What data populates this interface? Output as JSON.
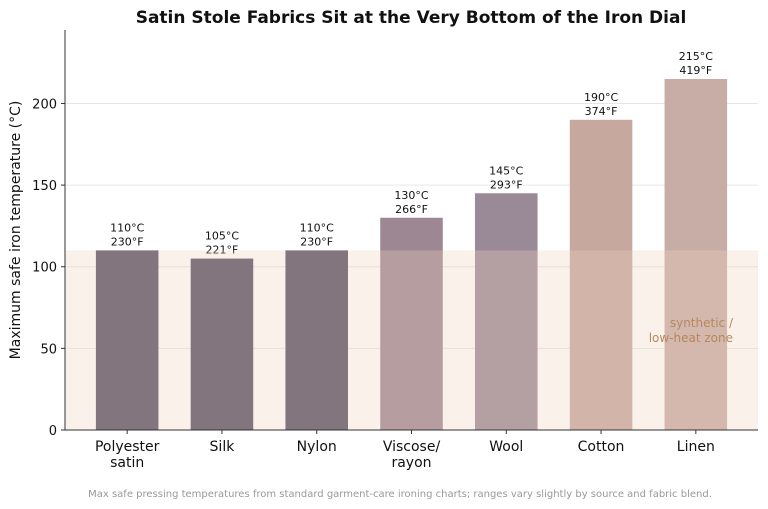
{
  "chart_data": {
    "type": "bar",
    "title": "Satin Stole Fabrics Sit at the Very Bottom of the Iron Dial",
    "y_label": "Maximum safe iron temperature (°C)",
    "categories": [
      "Polyester\nsatin",
      "Silk",
      "Nylon",
      "Viscose/\nrayon",
      "Wool",
      "Cotton",
      "Linen"
    ],
    "values": [
      110,
      105,
      110,
      130,
      145,
      190,
      215
    ],
    "value_labels": [
      "110°C",
      "105°C",
      "110°C",
      "130°C",
      "145°C",
      "190°C",
      "215°C"
    ],
    "fahrenheit_labels": [
      "230°F",
      "221°F",
      "230°F",
      "266°F",
      "293°F",
      "374°F",
      "419°F"
    ],
    "colors": [
      "#524e63",
      "#524e63",
      "#524e63",
      "#9c8792",
      "#9a8a97",
      "#c6a89f",
      "#c8aca6"
    ],
    "ylim": [
      0,
      245
    ],
    "yticks": [
      0,
      50,
      100,
      150,
      200
    ],
    "grid": true,
    "zone": {
      "from": 0,
      "to": 110,
      "label": "synthetic /\nlow-heat zone",
      "color": "#f3d2bd"
    },
    "footnote": "Max safe pressing temperatures from standard garment-care ironing charts; ranges vary slightly by source and fabric blend."
  }
}
